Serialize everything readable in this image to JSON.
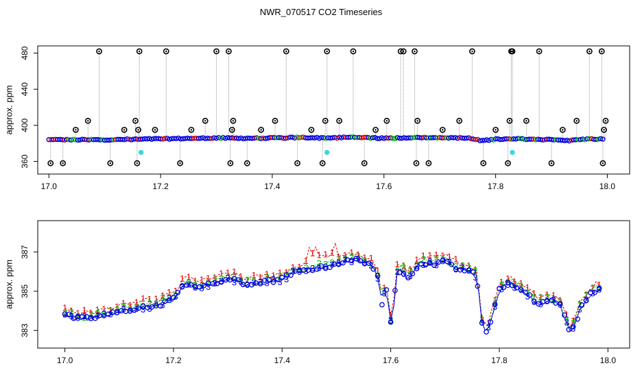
{
  "title": "NWR_070517  CO2 Timeseries",
  "chart_data": [
    {
      "type": "scatter",
      "ylabel": "approx. ppm",
      "xlim": [
        16.98,
        18.04
      ],
      "ylim": [
        346,
        488
      ],
      "x_ticks": [
        17.0,
        17.2,
        17.4,
        17.6,
        17.8,
        18.0
      ],
      "x_tick_labels": [
        "17.0",
        "17.2",
        "17.4",
        "17.6",
        "17.8",
        "18.0"
      ],
      "y_ticks": [
        360,
        400,
        440,
        480
      ],
      "y_tick_labels": [
        "360",
        "400",
        "440",
        "480"
      ],
      "baseline": {
        "x": [
          17.0,
          17.05,
          17.1,
          17.15,
          17.2,
          17.25,
          17.3,
          17.35,
          17.4,
          17.45,
          17.5,
          17.55,
          17.6,
          17.65,
          17.7,
          17.75,
          17.775,
          17.8,
          17.85,
          17.9,
          17.93,
          17.96,
          17.995
        ],
        "y": [
          384,
          384,
          384,
          384.5,
          385,
          385.5,
          386,
          385.5,
          386,
          386.5,
          386,
          387,
          385.5,
          386.5,
          386.5,
          386,
          383,
          384.5,
          385,
          384,
          383,
          384.5,
          385
        ]
      },
      "black_circles": {
        "color": "#000000",
        "x": [
          17.003,
          17.025,
          17.048,
          17.07,
          17.09,
          17.11,
          17.135,
          17.155,
          17.158,
          17.16,
          17.162,
          17.19,
          17.21,
          17.235,
          17.255,
          17.28,
          17.3,
          17.322,
          17.325,
          17.328,
          17.33,
          17.355,
          17.38,
          17.405,
          17.425,
          17.445,
          17.47,
          17.49,
          17.495,
          17.498,
          17.52,
          17.545,
          17.565,
          17.585,
          17.605,
          17.63,
          17.635,
          17.655,
          17.658,
          17.66,
          17.68,
          17.705,
          17.735,
          17.758,
          17.778,
          17.8,
          17.822,
          17.825,
          17.828,
          17.83,
          17.855,
          17.878,
          17.9,
          17.92,
          17.945,
          17.968,
          17.99,
          17.992,
          17.994,
          17.997
        ],
        "y": [
          358,
          358,
          395,
          405,
          482,
          358,
          395,
          405,
          358,
          395,
          482,
          395,
          482,
          358,
          395,
          405,
          482,
          482,
          358,
          395,
          405,
          358,
          395,
          405,
          482,
          358,
          395,
          358,
          405,
          482,
          405,
          482,
          358,
          395,
          405,
          482,
          482,
          482,
          358,
          405,
          358,
          395,
          405,
          482,
          358,
          395,
          358,
          405,
          482,
          482,
          405,
          482,
          358,
          395,
          405,
          482,
          482,
          358,
          395,
          405
        ]
      },
      "cyan_points": {
        "color": "#3ad7dd",
        "x": [
          17.165,
          17.498,
          17.83
        ],
        "y": [
          370,
          370,
          370
        ]
      },
      "series": [
        {
          "color": "#0000dd"
        },
        {
          "color": "#00bb00"
        },
        {
          "color": "#dd0000"
        }
      ]
    },
    {
      "type": "scatter",
      "ylabel": "approx. ppm",
      "xlim": [
        16.95,
        18.04
      ],
      "ylim": [
        382.1,
        388.6
      ],
      "x_ticks": [
        17.0,
        17.2,
        17.4,
        17.6,
        17.8,
        18.0
      ],
      "x_tick_labels": [
        "17.0",
        "17.2",
        "17.4",
        "17.6",
        "17.8",
        "18.0"
      ],
      "y_ticks": [
        383,
        385,
        387
      ],
      "y_tick_labels": [
        "383",
        "385",
        "387"
      ],
      "baseline": {
        "x": [
          17.0,
          17.02,
          17.05,
          17.08,
          17.1,
          17.13,
          17.15,
          17.165,
          17.18,
          17.2,
          17.21,
          17.22,
          17.25,
          17.28,
          17.3,
          17.32,
          17.33,
          17.35,
          17.38,
          17.4,
          17.42,
          17.45,
          17.48,
          17.5,
          17.52,
          17.54,
          17.56,
          17.57,
          17.58,
          17.585,
          17.59,
          17.6,
          17.605,
          17.61,
          17.62,
          17.63,
          17.65,
          17.66,
          17.68,
          17.7,
          17.72,
          17.74,
          17.755,
          17.762,
          17.768,
          17.775,
          17.78,
          17.79,
          17.8,
          17.82,
          17.85,
          17.87,
          17.9,
          17.91,
          17.92,
          17.93,
          17.94,
          17.95,
          17.97,
          17.98
        ],
        "y": [
          383.9,
          383.7,
          383.7,
          383.9,
          384.0,
          384.2,
          384.3,
          384.2,
          384.5,
          384.7,
          385.0,
          385.5,
          385.3,
          385.5,
          385.7,
          385.6,
          385.4,
          385.5,
          385.6,
          385.7,
          386.0,
          386.2,
          386.3,
          386.5,
          386.6,
          386.7,
          386.5,
          386.2,
          385.5,
          384.0,
          385.5,
          383.5,
          384.0,
          386.0,
          386.2,
          385.8,
          386.3,
          386.5,
          386.5,
          386.6,
          386.3,
          386.1,
          386.0,
          385.0,
          383.5,
          383.0,
          383.2,
          384.2,
          385.2,
          385.5,
          385.0,
          384.5,
          384.6,
          384.5,
          383.8,
          383.0,
          383.4,
          384.3,
          385.0,
          385.2
        ]
      },
      "series": [
        {
          "name": "1",
          "color": "#dd0000"
        },
        {
          "name": "2",
          "color": "#00bb00"
        },
        {
          "name": "3",
          "color": "#0000dd"
        }
      ]
    }
  ]
}
